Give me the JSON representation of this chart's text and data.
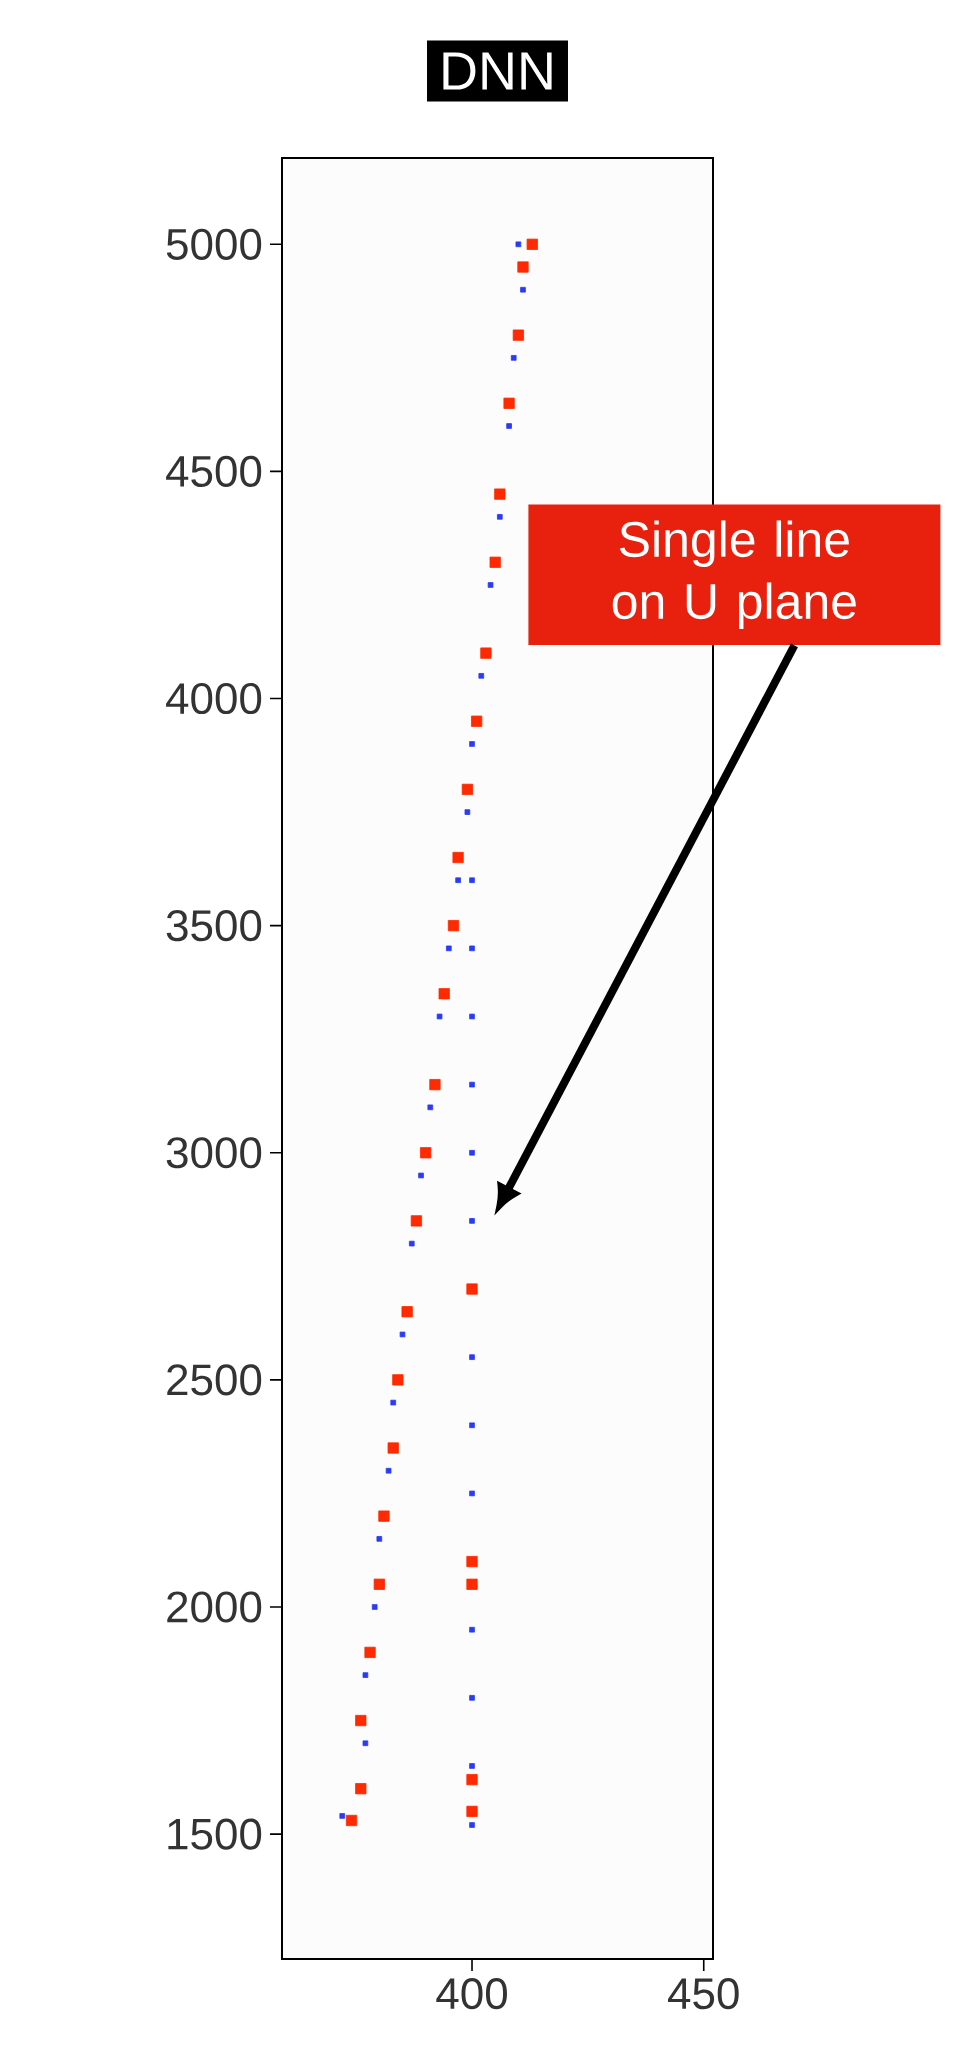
{
  "chart_data": {
    "type": "scatter",
    "title": "DNN",
    "xlim": [
      359,
      452
    ],
    "ylim": [
      1225,
      5190
    ],
    "xticks": [
      400,
      450
    ],
    "yticks": [
      1500,
      2000,
      2500,
      3000,
      3500,
      4000,
      4500,
      5000
    ],
    "marker": "square",
    "series": [
      {
        "color": "#2b3bf5",
        "x": [
          372,
          377,
          377,
          379,
          380,
          382,
          383,
          385,
          387,
          389,
          391,
          393,
          395,
          397,
          399,
          400,
          402,
          404,
          406,
          408,
          409,
          411,
          410,
          400,
          400,
          400,
          400,
          400,
          400,
          400,
          400,
          400,
          400,
          400,
          400,
          400
        ],
        "values": [
          1540,
          1700,
          1850,
          2000,
          2150,
          2300,
          2450,
          2600,
          2800,
          2950,
          3100,
          3300,
          3450,
          3600,
          3750,
          3900,
          4050,
          4250,
          4400,
          4600,
          4750,
          4900,
          5000,
          1520,
          1650,
          1800,
          1950,
          2250,
          2400,
          2550,
          2850,
          3000,
          3150,
          3300,
          3450,
          3600
        ]
      },
      {
        "color": "#ff2a00",
        "x": [
          374,
          376,
          376,
          378,
          380,
          381,
          383,
          384,
          386,
          388,
          390,
          392,
          394,
          396,
          397,
          399,
          401,
          403,
          405,
          406,
          408,
          410,
          411,
          413,
          400,
          400,
          400,
          400,
          400
        ],
        "values": [
          1530,
          1600,
          1750,
          1900,
          2050,
          2200,
          2350,
          2500,
          2650,
          2850,
          3000,
          3150,
          3350,
          3500,
          3650,
          3800,
          3950,
          4100,
          4300,
          4450,
          4650,
          4800,
          4950,
          5000,
          1550,
          1620,
          2050,
          2100,
          2700
        ]
      }
    ],
    "annotations": [
      "Single line on U plane"
    ]
  }
}
